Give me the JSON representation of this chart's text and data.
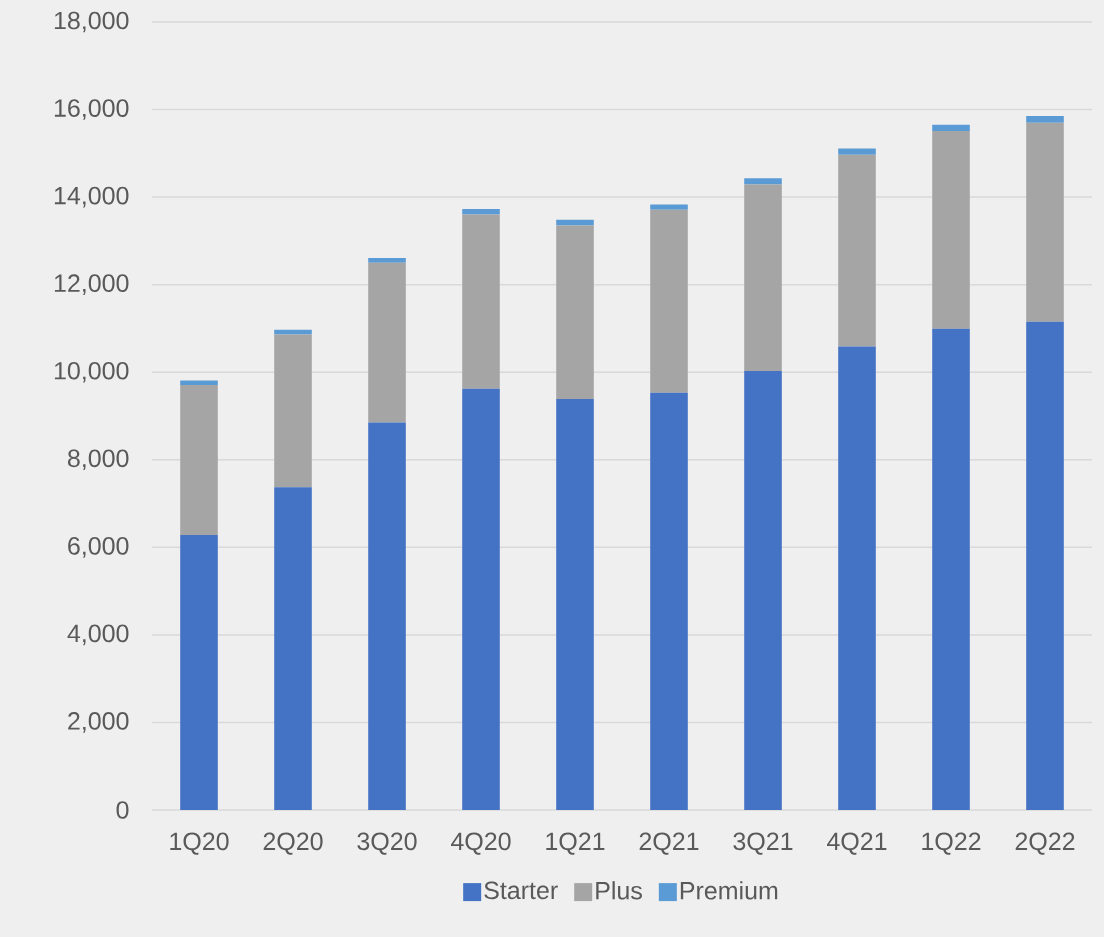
{
  "chart_data": {
    "type": "bar",
    "stacked": true,
    "categories": [
      "1Q20",
      "2Q20",
      "3Q20",
      "4Q20",
      "1Q21",
      "2Q21",
      "3Q21",
      "4Q21",
      "1Q22",
      "2Q22"
    ],
    "series": [
      {
        "name": "Starter",
        "color": "#4472c4",
        "values": [
          6280,
          7370,
          8850,
          9620,
          9390,
          9530,
          10030,
          10590,
          10990,
          11150
        ]
      },
      {
        "name": "Plus",
        "color": "#a5a5a5",
        "values": [
          3430,
          3490,
          3650,
          3980,
          3960,
          4180,
          4260,
          4380,
          4520,
          4550
        ]
      },
      {
        "name": "Premium",
        "color": "#5b9bd5",
        "values": [
          100,
          110,
          110,
          130,
          130,
          120,
          140,
          140,
          140,
          150
        ]
      }
    ],
    "ylim": [
      0,
      18000
    ],
    "yticks": [
      {
        "value": 0,
        "label": "0"
      },
      {
        "value": 2000,
        "label": "2,000"
      },
      {
        "value": 4000,
        "label": "4,000"
      },
      {
        "value": 6000,
        "label": "6,000"
      },
      {
        "value": 8000,
        "label": "8,000"
      },
      {
        "value": 10000,
        "label": "10,000"
      },
      {
        "value": 12000,
        "label": "12,000"
      },
      {
        "value": 14000,
        "label": "14,000"
      },
      {
        "value": 16000,
        "label": "16,000"
      },
      {
        "value": 18000,
        "label": "18,000"
      }
    ],
    "grid": "y",
    "legend": "bottom"
  }
}
